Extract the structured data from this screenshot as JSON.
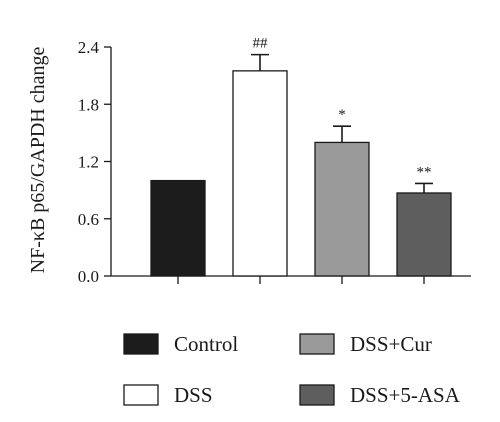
{
  "chart_data": {
    "type": "bar",
    "title": "",
    "xlabel": "",
    "ylabel": "NF-κB p65/GAPDH change",
    "ylim": [
      0,
      2.4
    ],
    "yticks": [
      "0.0",
      "0.6",
      "1.2",
      "1.8",
      "2.4"
    ],
    "categories": [
      "Control",
      "DSS",
      "DSS+Cur",
      "DSS+5-ASA"
    ],
    "values": [
      1.0,
      2.15,
      1.4,
      0.87
    ],
    "errors": [
      0,
      0.17,
      0.17,
      0.1
    ],
    "annotations": [
      "",
      "##",
      "*",
      "**"
    ],
    "colors": [
      "#1c1c1c",
      "#ffffff",
      "#9a9a9a",
      "#5e5e5e"
    ],
    "legend_position": "bottom",
    "grid": false
  }
}
